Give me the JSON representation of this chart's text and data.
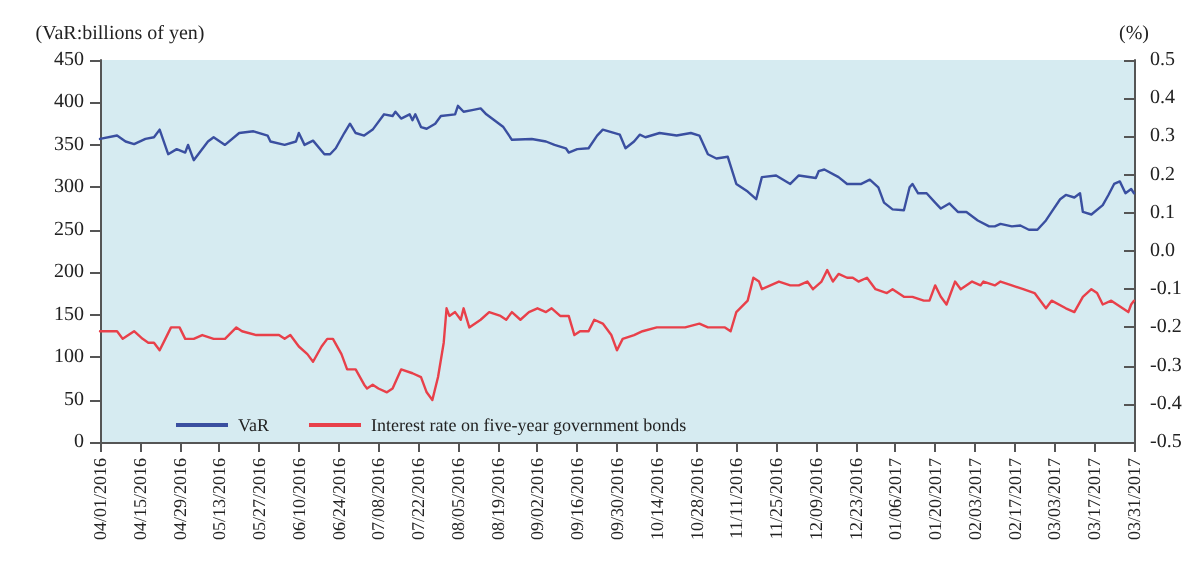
{
  "chart_data": {
    "type": "line",
    "ylabel": "(VaR:billions of yen)",
    "y2label": "(%)",
    "legend": "bottom left",
    "grid": false,
    "marker": "none",
    "line_style": "solid",
    "xlim": [
      "2016-04-01",
      "2017-03-31"
    ],
    "xticks": [
      {
        "value": "2016-04-01",
        "label": "04/01/2016"
      },
      {
        "value": "2016-04-15",
        "label": "04/15/2016"
      },
      {
        "value": "2016-04-29",
        "label": "04/29/2016"
      },
      {
        "value": "2016-05-13",
        "label": "05/13/2016"
      },
      {
        "value": "2016-05-27",
        "label": "05/27/2016"
      },
      {
        "value": "2016-06-10",
        "label": "06/10/2016"
      },
      {
        "value": "2016-06-24",
        "label": "06/24/2016"
      },
      {
        "value": "2016-07-08",
        "label": "07/08/2016"
      },
      {
        "value": "2016-07-22",
        "label": "07/22/2016"
      },
      {
        "value": "2016-08-05",
        "label": "08/05/2016"
      },
      {
        "value": "2016-08-19",
        "label": "08/19/2016"
      },
      {
        "value": "2016-09-02",
        "label": "09/02/2016"
      },
      {
        "value": "2016-09-16",
        "label": "09/16/2016"
      },
      {
        "value": "2016-09-30",
        "label": "09/30/2016"
      },
      {
        "value": "2016-10-14",
        "label": "10/14/2016"
      },
      {
        "value": "2016-10-28",
        "label": "10/28/2016"
      },
      {
        "value": "2016-11-11",
        "label": "11/11/2016"
      },
      {
        "value": "2016-11-25",
        "label": "11/25/2016"
      },
      {
        "value": "2016-12-09",
        "label": "12/09/2016"
      },
      {
        "value": "2016-12-23",
        "label": "12/23/2016"
      },
      {
        "value": "2017-01-06",
        "label": "01/06/2017"
      },
      {
        "value": "2017-01-20",
        "label": "01/20/2017"
      },
      {
        "value": "2017-02-03",
        "label": "02/03/2017"
      },
      {
        "value": "2017-02-17",
        "label": "02/17/2017"
      },
      {
        "value": "2017-03-03",
        "label": "03/03/2017"
      },
      {
        "value": "2017-03-17",
        "label": "03/17/2017"
      },
      {
        "value": "2017-03-31",
        "label": "03/31/2017"
      }
    ],
    "ylim": [
      0,
      450
    ],
    "yticks": [
      0,
      50,
      100,
      150,
      200,
      250,
      300,
      350,
      400,
      450
    ],
    "y2lim": [
      -0.5,
      0.5
    ],
    "y2ticks": [
      -0.5,
      -0.4,
      -0.3,
      -0.2,
      -0.1,
      {
        "value": 0,
        "label": "0.0"
      },
      0.1,
      0.2,
      0.3,
      0.4,
      0.5
    ],
    "series": [
      {
        "name": "VaR",
        "color": "#3a4fa0",
        "x": [
          "2016-04-01",
          "2016-04-07",
          "2016-04-10",
          "2016-04-13",
          "2016-04-17",
          "2016-04-20",
          "2016-04-22",
          "2016-04-25",
          "2016-04-28",
          "2016-05-01",
          "2016-05-02",
          "2016-05-04",
          "2016-05-09",
          "2016-05-11",
          "2016-05-15",
          "2016-05-20",
          "2016-05-25",
          "2016-05-30",
          "2016-05-31",
          "2016-06-05",
          "2016-06-09",
          "2016-06-10",
          "2016-06-12",
          "2016-06-15",
          "2016-06-19",
          "2016-06-21",
          "2016-06-23",
          "2016-06-26",
          "2016-06-28",
          "2016-06-30",
          "2016-07-03",
          "2016-07-06",
          "2016-07-10",
          "2016-07-13",
          "2016-07-14",
          "2016-07-16",
          "2016-07-19",
          "2016-07-20",
          "2016-07-21",
          "2016-07-23",
          "2016-07-25",
          "2016-07-28",
          "2016-07-30",
          "2016-08-04",
          "2016-08-05",
          "2016-08-07",
          "2016-08-10",
          "2016-08-13",
          "2016-08-15",
          "2016-08-17",
          "2016-08-21",
          "2016-08-24",
          "2016-08-31",
          "2016-09-05",
          "2016-09-08",
          "2016-09-12",
          "2016-09-13",
          "2016-09-16",
          "2016-09-20",
          "2016-09-23",
          "2016-09-25",
          "2016-10-01",
          "2016-10-03",
          "2016-10-06",
          "2016-10-08",
          "2016-10-10",
          "2016-10-15",
          "2016-10-21",
          "2016-10-26",
          "2016-10-29",
          "2016-11-01",
          "2016-11-04",
          "2016-11-08",
          "2016-11-11",
          "2016-11-15",
          "2016-11-18",
          "2016-11-20",
          "2016-11-25",
          "2016-11-30",
          "2016-12-03",
          "2016-12-09",
          "2016-12-10",
          "2016-12-12",
          "2016-12-17",
          "2016-12-20",
          "2016-12-25",
          "2016-12-28",
          "2016-12-31",
          "2017-01-02",
          "2017-01-05",
          "2017-01-09",
          "2017-01-11",
          "2017-01-12",
          "2017-01-14",
          "2017-01-17",
          "2017-01-20",
          "2017-01-22",
          "2017-01-25",
          "2017-01-28",
          "2017-01-31",
          "2017-02-04",
          "2017-02-08",
          "2017-02-10",
          "2017-02-12",
          "2017-02-16",
          "2017-02-19",
          "2017-02-22",
          "2017-02-25",
          "2017-02-28",
          "2017-03-02",
          "2017-03-05",
          "2017-03-07",
          "2017-03-10",
          "2017-03-12",
          "2017-03-13",
          "2017-03-16",
          "2017-03-20",
          "2017-03-22",
          "2017-03-24",
          "2017-03-26",
          "2017-03-28",
          "2017-03-30",
          "2017-03-31"
        ],
        "values": [
          357,
          361,
          354,
          351,
          357,
          359,
          368,
          339,
          345,
          341,
          350,
          332,
          354,
          359,
          350,
          364,
          366,
          361,
          354,
          350,
          354,
          364,
          350,
          355,
          339,
          339,
          346,
          364,
          375,
          364,
          361,
          368,
          386,
          384,
          389,
          381,
          386,
          379,
          386,
          371,
          369,
          375,
          384,
          386,
          396,
          389,
          391,
          393,
          386,
          381,
          371,
          356,
          357,
          354,
          350,
          346,
          341,
          345,
          346,
          361,
          368,
          362,
          346,
          354,
          362,
          359,
          364,
          361,
          364,
          361,
          339,
          334,
          336,
          304,
          295,
          286,
          312,
          314,
          304,
          314,
          311,
          319,
          321,
          312,
          304,
          304,
          309,
          300,
          282,
          274,
          273,
          300,
          304,
          293,
          293,
          282,
          275,
          281,
          271,
          271,
          261,
          254,
          254,
          257,
          254,
          255,
          250,
          250,
          261,
          271,
          286,
          291,
          288,
          293,
          271,
          268,
          279,
          291,
          304,
          307,
          293,
          298,
          293
        ]
      },
      {
        "name": "Interest rate on five-year government bonds",
        "color": "#e8404a",
        "axis": "y2",
        "x": [
          "2016-04-01",
          "2016-04-04",
          "2016-04-07",
          "2016-04-09",
          "2016-04-11",
          "2016-04-13",
          "2016-04-16",
          "2016-04-18",
          "2016-04-20",
          "2016-04-22",
          "2016-04-24",
          "2016-04-26",
          "2016-04-29",
          "2016-05-01",
          "2016-05-04",
          "2016-05-07",
          "2016-05-11",
          "2016-05-15",
          "2016-05-19",
          "2016-05-21",
          "2016-05-26",
          "2016-05-30",
          "2016-06-03",
          "2016-06-05",
          "2016-06-07",
          "2016-06-10",
          "2016-06-13",
          "2016-06-15",
          "2016-06-18",
          "2016-06-20",
          "2016-06-22",
          "2016-06-25",
          "2016-06-27",
          "2016-06-30",
          "2016-07-03",
          "2016-07-04",
          "2016-07-06",
          "2016-07-08",
          "2016-07-11",
          "2016-07-13",
          "2016-07-16",
          "2016-07-20",
          "2016-07-23",
          "2016-07-25",
          "2016-07-27",
          "2016-07-29",
          "2016-07-31",
          "2016-08-01",
          "2016-08-02",
          "2016-08-04",
          "2016-08-06",
          "2016-08-07",
          "2016-08-09",
          "2016-08-13",
          "2016-08-16",
          "2016-08-20",
          "2016-08-22",
          "2016-08-24",
          "2016-08-27",
          "2016-08-30",
          "2016-09-02",
          "2016-09-05",
          "2016-09-07",
          "2016-09-10",
          "2016-09-13",
          "2016-09-15",
          "2016-09-17",
          "2016-09-20",
          "2016-09-22",
          "2016-09-25",
          "2016-09-28",
          "2016-09-30",
          "2016-10-02",
          "2016-10-06",
          "2016-10-09",
          "2016-10-14",
          "2016-10-17",
          "2016-10-21",
          "2016-10-24",
          "2016-10-29",
          "2016-11-01",
          "2016-11-04",
          "2016-11-07",
          "2016-11-09",
          "2016-11-11",
          "2016-11-15",
          "2016-11-17",
          "2016-11-19",
          "2016-11-20",
          "2016-11-23",
          "2016-11-26",
          "2016-11-30",
          "2016-12-03",
          "2016-12-06",
          "2016-12-08",
          "2016-12-11",
          "2016-12-13",
          "2016-12-15",
          "2016-12-17",
          "2016-12-20",
          "2016-12-22",
          "2016-12-24",
          "2016-12-27",
          "2016-12-30",
          "2017-01-03",
          "2017-01-05",
          "2017-01-09",
          "2017-01-12",
          "2017-01-16",
          "2017-01-18",
          "2017-01-20",
          "2017-01-22",
          "2017-01-24",
          "2017-01-27",
          "2017-01-29",
          "2017-02-02",
          "2017-02-05",
          "2017-02-06",
          "2017-02-10",
          "2017-02-12",
          "2017-02-16",
          "2017-02-20",
          "2017-02-24",
          "2017-02-28",
          "2017-03-02",
          "2017-03-07",
          "2017-03-10",
          "2017-03-13",
          "2017-03-16",
          "2017-03-18",
          "2017-03-20",
          "2017-03-23",
          "2017-03-27",
          "2017-03-29",
          "2017-03-30",
          "2017-03-31"
        ],
        "values": [
          -0.21,
          -0.21,
          -0.21,
          -0.23,
          -0.22,
          -0.21,
          -0.23,
          -0.24,
          -0.24,
          -0.26,
          -0.23,
          -0.2,
          -0.2,
          -0.23,
          -0.23,
          -0.22,
          -0.23,
          -0.23,
          -0.2,
          -0.21,
          -0.22,
          -0.22,
          -0.22,
          -0.23,
          -0.22,
          -0.25,
          -0.27,
          -0.29,
          -0.25,
          -0.23,
          -0.23,
          -0.27,
          -0.31,
          -0.31,
          -0.35,
          -0.36,
          -0.35,
          -0.36,
          -0.37,
          -0.36,
          -0.31,
          -0.32,
          -0.33,
          -0.37,
          -0.39,
          -0.33,
          -0.24,
          -0.15,
          -0.17,
          -0.16,
          -0.18,
          -0.15,
          -0.2,
          -0.18,
          -0.16,
          -0.17,
          -0.18,
          -0.16,
          -0.18,
          -0.16,
          -0.15,
          -0.16,
          -0.15,
          -0.17,
          -0.17,
          -0.22,
          -0.21,
          -0.21,
          -0.18,
          -0.19,
          -0.22,
          -0.26,
          -0.23,
          -0.22,
          -0.21,
          -0.2,
          -0.2,
          -0.2,
          -0.2,
          -0.19,
          -0.2,
          -0.2,
          -0.2,
          -0.21,
          -0.16,
          -0.13,
          -0.07,
          -0.08,
          -0.1,
          -0.09,
          -0.08,
          -0.09,
          -0.09,
          -0.08,
          -0.1,
          -0.08,
          -0.05,
          -0.08,
          -0.06,
          -0.07,
          -0.07,
          -0.08,
          -0.07,
          -0.1,
          -0.11,
          -0.1,
          -0.12,
          -0.12,
          -0.13,
          -0.13,
          -0.09,
          -0.12,
          -0.14,
          -0.08,
          -0.1,
          -0.08,
          -0.09,
          -0.08,
          -0.09,
          -0.08,
          -0.09,
          -0.1,
          -0.11,
          -0.15,
          -0.13,
          -0.15,
          -0.16,
          -0.12,
          -0.1,
          -0.11,
          -0.14,
          -0.13,
          -0.15,
          -0.16,
          -0.14,
          -0.13
        ]
      }
    ]
  }
}
